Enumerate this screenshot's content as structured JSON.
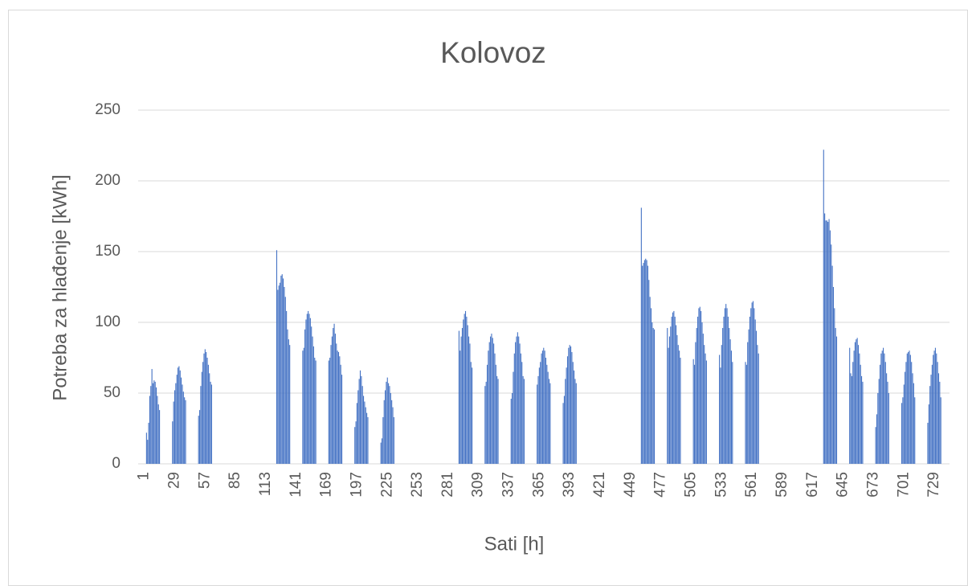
{
  "chart_data": {
    "type": "bar",
    "title": "Kolovoz",
    "x_label": "Sati [h]",
    "y_label": "Potreba za hlađenje [kWh]",
    "color": "#4472c4",
    "grid": true,
    "ylim": [
      0,
      250
    ],
    "yticks": [
      0,
      50,
      100,
      150,
      200,
      250
    ],
    "categories": [
      1,
      null,
      null,
      null,
      null,
      null,
      null,
      null,
      null,
      null,
      null,
      null,
      null,
      null,
      null,
      null,
      null,
      null,
      null,
      null,
      null,
      null,
      null,
      null,
      null,
      null,
      null,
      null,
      29,
      null,
      null,
      null,
      null,
      null,
      null,
      null,
      null,
      null,
      null,
      null,
      null,
      null,
      null,
      null,
      null,
      null,
      null,
      null,
      null,
      null,
      null,
      null,
      null,
      null,
      null,
      null,
      57,
      null,
      null,
      null,
      null,
      null,
      null,
      null,
      null,
      null,
      null,
      null,
      null,
      null,
      null,
      null,
      null,
      null,
      null,
      null,
      null,
      null,
      null,
      null,
      null,
      null,
      null,
      null,
      85,
      null,
      null,
      null,
      null,
      null,
      null,
      null,
      null,
      null,
      null,
      null,
      null,
      null,
      null,
      null,
      null,
      null,
      null,
      null,
      null,
      null,
      null,
      null,
      null,
      null,
      null,
      null,
      113,
      null,
      null,
      null,
      null,
      null,
      null,
      null,
      null,
      null,
      null,
      null,
      null,
      null,
      null,
      null,
      null,
      null,
      null,
      null,
      null,
      null,
      null,
      null,
      null,
      null,
      null,
      null,
      141,
      null,
      null,
      null,
      null,
      null,
      null,
      null,
      null,
      null,
      null,
      null,
      null,
      null,
      null,
      null,
      null,
      null,
      null,
      null,
      null,
      null,
      null,
      null,
      null,
      null,
      null,
      null,
      169,
      null,
      null,
      null,
      null,
      null,
      null,
      null,
      null,
      null,
      null,
      null,
      null,
      null,
      null,
      null,
      null,
      null,
      null,
      null,
      null,
      null,
      null,
      null,
      null,
      null,
      null,
      null,
      197,
      null,
      null,
      null,
      null,
      null,
      null,
      null,
      null,
      null,
      null,
      null,
      null,
      null,
      null,
      null,
      null,
      null,
      null,
      null,
      null,
      null,
      null,
      null,
      null,
      null,
      null,
      null,
      225,
      null,
      null,
      null,
      null,
      null,
      null,
      null,
      null,
      null,
      null,
      null,
      null,
      null,
      null,
      null,
      null,
      null,
      null,
      null,
      null,
      null,
      null,
      null,
      null,
      null,
      null,
      null,
      253,
      null,
      null,
      null,
      null,
      null,
      null,
      null,
      null,
      null,
      null,
      null,
      null,
      null,
      null,
      null,
      null,
      null,
      null,
      null,
      null,
      null,
      null,
      null,
      null,
      null,
      null,
      null,
      281,
      null,
      null,
      null,
      null,
      null,
      null,
      null,
      null,
      null,
      null,
      null,
      null,
      null,
      null,
      null,
      null,
      null,
      null,
      null,
      null,
      null,
      null,
      null,
      null,
      null,
      null,
      null,
      309,
      null,
      null,
      null,
      null,
      null,
      null,
      null,
      null,
      null,
      null,
      null,
      null,
      null,
      null,
      null,
      null,
      null,
      null,
      null,
      null,
      null,
      null,
      null,
      null,
      null,
      null,
      null,
      337,
      null,
      null,
      null,
      null,
      null,
      null,
      null,
      null,
      null,
      null,
      null,
      null,
      null,
      null,
      null,
      null,
      null,
      null,
      null,
      null,
      null,
      null,
      null,
      null,
      null,
      null,
      null,
      365,
      null,
      null,
      null,
      null,
      null,
      null,
      null,
      null,
      null,
      null,
      null,
      null,
      null,
      null,
      null,
      null,
      null,
      null,
      null,
      null,
      null,
      null,
      null,
      null,
      null,
      null,
      null,
      393,
      null,
      null,
      null,
      null,
      null,
      null,
      null,
      null,
      null,
      null,
      null,
      null,
      null,
      null,
      null,
      null,
      null,
      null,
      null,
      null,
      null,
      null,
      null,
      null,
      null,
      null,
      null,
      421,
      null,
      null,
      null,
      null,
      null,
      null,
      null,
      null,
      null,
      null,
      null,
      null,
      null,
      null,
      null,
      null,
      null,
      null,
      null,
      null,
      null,
      null,
      null,
      null,
      null,
      null,
      null,
      449,
      null,
      null,
      null,
      null,
      null,
      null,
      null,
      null,
      null,
      null,
      null,
      null,
      null,
      null,
      null,
      null,
      null,
      null,
      null,
      null,
      null,
      null,
      null,
      null,
      null,
      null,
      null,
      477,
      null,
      null,
      null,
      null,
      null,
      null,
      null,
      null,
      null,
      null,
      null,
      null,
      null,
      null,
      null,
      null,
      null,
      null,
      null,
      null,
      null,
      null,
      null,
      null,
      null,
      null,
      null,
      505,
      null,
      null,
      null,
      null,
      null,
      null,
      null,
      null,
      null,
      null,
      null,
      null,
      null,
      null,
      null,
      null,
      null,
      null,
      null,
      null,
      null,
      null,
      null,
      null,
      null,
      null,
      null,
      533,
      null,
      null,
      null,
      null,
      null,
      null,
      null,
      null,
      null,
      null,
      null,
      null,
      null,
      null,
      null,
      null,
      null,
      null,
      null,
      null,
      null,
      null,
      null,
      null,
      null,
      null,
      null,
      561,
      null,
      null,
      null,
      null,
      null,
      null,
      null,
      null,
      null,
      null,
      null,
      null,
      null,
      null,
      null,
      null,
      null,
      null,
      null,
      null,
      null,
      null,
      null,
      null,
      null,
      null,
      null,
      589,
      null,
      null,
      null,
      null,
      null,
      null,
      null,
      null,
      null,
      null,
      null,
      null,
      null,
      null,
      null,
      null,
      null,
      null,
      null,
      null,
      null,
      null,
      null,
      null,
      null,
      null,
      null,
      617,
      null,
      null,
      null,
      null,
      null,
      null,
      null,
      null,
      null,
      null,
      null,
      null,
      null,
      null,
      null,
      null,
      null,
      null,
      null,
      null,
      null,
      null,
      null,
      null,
      null,
      null,
      null,
      645,
      null,
      null,
      null,
      null,
      null,
      null,
      null,
      null,
      null,
      null,
      null,
      null,
      null,
      null,
      null,
      null,
      null,
      null,
      null,
      null,
      null,
      null,
      null,
      null,
      null,
      null,
      null,
      673,
      null,
      null,
      null,
      null,
      null,
      null,
      null,
      null,
      null,
      null,
      null,
      null,
      null,
      null,
      null,
      null,
      null,
      null,
      null,
      null,
      null,
      null,
      null,
      null,
      null,
      null,
      null,
      701,
      null,
      null,
      null,
      null,
      null,
      null,
      null,
      null,
      null,
      null,
      null,
      null,
      null,
      null,
      null,
      null,
      null,
      null,
      null,
      null,
      null,
      null,
      null,
      null,
      null,
      null,
      null,
      729,
      null,
      null,
      null,
      null,
      null,
      null,
      null,
      null,
      null,
      null,
      null,
      null,
      null,
      null,
      null
    ],
    "values": [
      0,
      0,
      22,
      17,
      29,
      48,
      55,
      67,
      57,
      59,
      58,
      54,
      48,
      42,
      38,
      0,
      0,
      0,
      0,
      0,
      0,
      0,
      0,
      0,
      0,
      0,
      30,
      44,
      52,
      57,
      63,
      68,
      69,
      66,
      61,
      56,
      51,
      47,
      45,
      0,
      0,
      0,
      0,
      0,
      0,
      0,
      0,
      0,
      0,
      0,
      34,
      38,
      55,
      65,
      72,
      78,
      81,
      79,
      75,
      70,
      64,
      58,
      56,
      0,
      0,
      0,
      0,
      0,
      0,
      0,
      0,
      0,
      0,
      0,
      0,
      0,
      0,
      0,
      0,
      0,
      0,
      0,
      0,
      0,
      0,
      0,
      0,
      0,
      0,
      0,
      0,
      0,
      0,
      0,
      0,
      0,
      0,
      0,
      0,
      0,
      0,
      0,
      0,
      0,
      0,
      0,
      0,
      0,
      0,
      0,
      0,
      0,
      0,
      0,
      0,
      0,
      0,
      0,
      0,
      0,
      0,
      0,
      151,
      123,
      126,
      128,
      133,
      134,
      131,
      125,
      118,
      108,
      95,
      88,
      84,
      0,
      0,
      0,
      0,
      0,
      0,
      0,
      0,
      0,
      0,
      0,
      80,
      82,
      95,
      102,
      106,
      108,
      106,
      103,
      97,
      90,
      83,
      75,
      73,
      0,
      0,
      0,
      0,
      0,
      0,
      0,
      0,
      0,
      0,
      0,
      73,
      75,
      84,
      90,
      96,
      99,
      92,
      85,
      80,
      79,
      76,
      70,
      63,
      0,
      0,
      0,
      0,
      0,
      0,
      0,
      0,
      0,
      0,
      0,
      26,
      30,
      43,
      52,
      60,
      66,
      62,
      55,
      48,
      44,
      40,
      36,
      33,
      0,
      0,
      0,
      0,
      0,
      0,
      0,
      0,
      0,
      0,
      0,
      15,
      18,
      33,
      45,
      52,
      58,
      61,
      57,
      55,
      50,
      45,
      40,
      33,
      0,
      0,
      0,
      0,
      0,
      0,
      0,
      0,
      0,
      0,
      0,
      0,
      0,
      0,
      0,
      0,
      0,
      0,
      0,
      0,
      0,
      0,
      0,
      0,
      0,
      0,
      0,
      0,
      0,
      0,
      0,
      0,
      0,
      0,
      0,
      0,
      0,
      0,
      0,
      0,
      0,
      0,
      0,
      0,
      0,
      0,
      0,
      0,
      0,
      0,
      0,
      0,
      0,
      0,
      0,
      0,
      0,
      0,
      0,
      94,
      80,
      90,
      96,
      102,
      106,
      108,
      104,
      98,
      90,
      85,
      72,
      68,
      0,
      0,
      0,
      0,
      0,
      0,
      0,
      0,
      0,
      0,
      0,
      55,
      58,
      70,
      80,
      86,
      90,
      92,
      89,
      85,
      78,
      70,
      62,
      60,
      0,
      0,
      0,
      0,
      0,
      0,
      0,
      0,
      0,
      0,
      0,
      46,
      50,
      65,
      78,
      86,
      90,
      93,
      90,
      85,
      78,
      72,
      62,
      60,
      0,
      0,
      0,
      0,
      0,
      0,
      0,
      0,
      0,
      0,
      0,
      56,
      62,
      68,
      72,
      78,
      80,
      82,
      80,
      75,
      70,
      65,
      60,
      57,
      0,
      0,
      0,
      0,
      0,
      0,
      0,
      0,
      0,
      0,
      0,
      43,
      48,
      60,
      68,
      76,
      82,
      84,
      83,
      79,
      72,
      66,
      60,
      57,
      0,
      0,
      0,
      0,
      0,
      0,
      0,
      0,
      0,
      0,
      0,
      0,
      0,
      0,
      0,
      0,
      0,
      0,
      0,
      0,
      0,
      0,
      0,
      0,
      0,
      0,
      0,
      0,
      0,
      0,
      0,
      0,
      0,
      0,
      0,
      0,
      0,
      0,
      0,
      0,
      0,
      0,
      0,
      0,
      0,
      0,
      0,
      0,
      0,
      0,
      0,
      0,
      0,
      0,
      0,
      0,
      0,
      0,
      0,
      181,
      140,
      142,
      144,
      145,
      144,
      140,
      130,
      118,
      110,
      100,
      96,
      95,
      0,
      0,
      0,
      0,
      0,
      0,
      0,
      0,
      0,
      0,
      0,
      96,
      82,
      90,
      97,
      104,
      107,
      108,
      104,
      98,
      91,
      84,
      80,
      75,
      0,
      0,
      0,
      0,
      0,
      0,
      0,
      0,
      0,
      0,
      0,
      74,
      70,
      86,
      96,
      104,
      110,
      111,
      108,
      100,
      92,
      84,
      78,
      73,
      0,
      0,
      0,
      0,
      0,
      0,
      0,
      0,
      0,
      0,
      0,
      77,
      68,
      84,
      96,
      104,
      110,
      113,
      110,
      104,
      96,
      88,
      80,
      72,
      0,
      0,
      0,
      0,
      0,
      0,
      0,
      0,
      0,
      0,
      0,
      72,
      70,
      86,
      95,
      104,
      110,
      114,
      115,
      110,
      102,
      94,
      84,
      78,
      0,
      0,
      0,
      0,
      0,
      0,
      0,
      0,
      0,
      0,
      0,
      0,
      0,
      0,
      0,
      0,
      0,
      0,
      0,
      0,
      0,
      0,
      0,
      0,
      0,
      0,
      0,
      0,
      0,
      0,
      0,
      0,
      0,
      0,
      0,
      0,
      0,
      0,
      0,
      0,
      0,
      0,
      0,
      0,
      0,
      0,
      0,
      0,
      0,
      0,
      0,
      0,
      0,
      0,
      0,
      0,
      0,
      0,
      0,
      222,
      177,
      172,
      172,
      171,
      173,
      165,
      155,
      140,
      125,
      110,
      96,
      90,
      0,
      0,
      0,
      0,
      0,
      0,
      0,
      0,
      0,
      0,
      0,
      82,
      64,
      62,
      72,
      80,
      86,
      88,
      89,
      84,
      78,
      70,
      62,
      58,
      0,
      0,
      0,
      0,
      0,
      0,
      0,
      0,
      0,
      0,
      0,
      26,
      35,
      50,
      60,
      70,
      78,
      80,
      82,
      78,
      72,
      64,
      58,
      50,
      0,
      0,
      0,
      0,
      0,
      0,
      0,
      0,
      0,
      0,
      0,
      43,
      47,
      56,
      65,
      72,
      78,
      79,
      80,
      77,
      72,
      64,
      57,
      47,
      0,
      0,
      0,
      0,
      0,
      0,
      0,
      0,
      0,
      0,
      0,
      29,
      42,
      55,
      63,
      70,
      77,
      80,
      82,
      78,
      72,
      64,
      58,
      47,
      0,
      0,
      0,
      0,
      0,
      0,
      0,
      0,
      0
    ]
  }
}
